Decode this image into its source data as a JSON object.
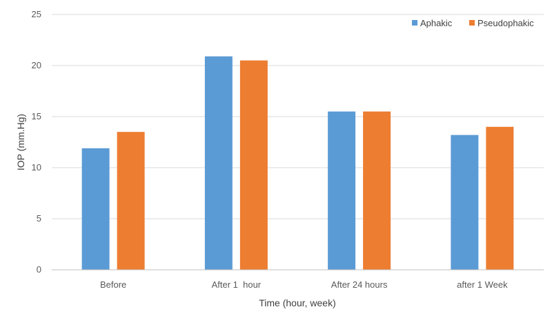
{
  "chart_data": {
    "type": "bar",
    "title": "",
    "xlabel": "Time (hour, week)",
    "ylabel": "IOP (mm.Hg)",
    "categories": [
      "Before",
      "After 1  hour",
      "After 24 hours",
      "after 1 Week"
    ],
    "series": [
      {
        "name": "Aphakic",
        "color": "#5B9BD5",
        "values": [
          11.9,
          20.9,
          15.5,
          13.2
        ]
      },
      {
        "name": "Pseudophakic",
        "color": "#ED7D31",
        "values": [
          13.5,
          20.5,
          15.5,
          14.0
        ]
      }
    ],
    "ylim": [
      0,
      25
    ],
    "yticks": [
      "0",
      "5",
      "10",
      "15",
      "20",
      "25"
    ],
    "grid": true,
    "legend_position": "top-right",
    "colors": {
      "grid": "#D9D9D9",
      "axis": "#BFBFBF",
      "text": "#595959"
    }
  }
}
